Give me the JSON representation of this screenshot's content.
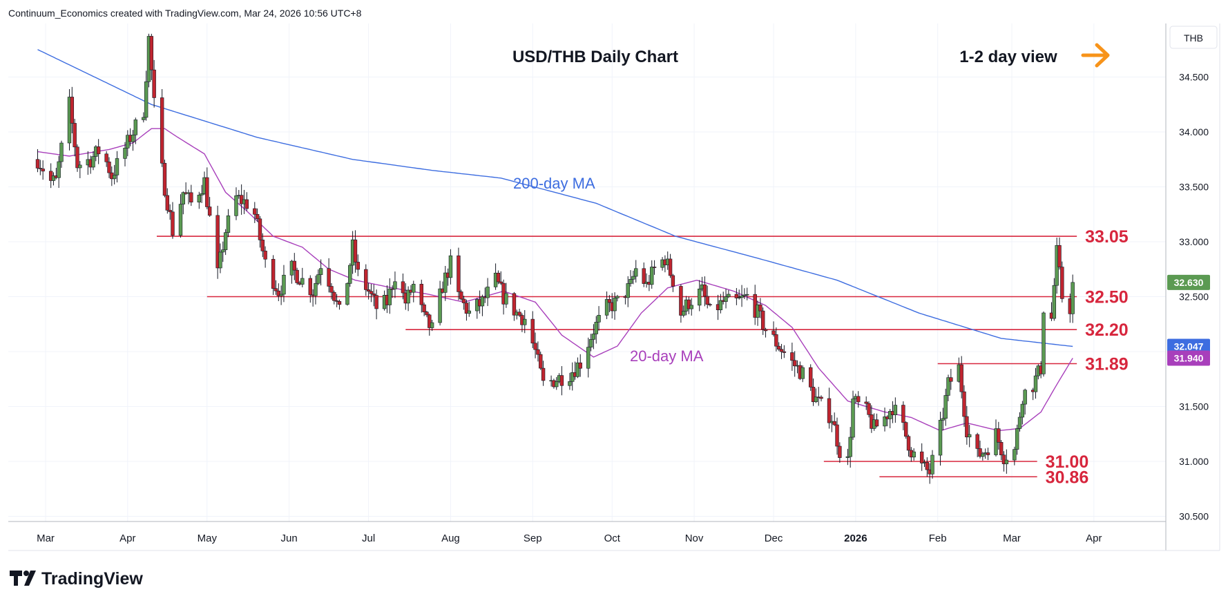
{
  "header": {
    "attribution": "Continuum_Economics created with TradingView.com, Mar 24, 2026 10:56 UTC+8"
  },
  "branding": {
    "logo_text": "TradingView"
  },
  "chart_data": {
    "type": "candlestick",
    "title": "USD/THB Daily Chart",
    "view": {
      "label": "1-2 day view",
      "direction": "right-arrow",
      "arrow_color": "#f7931a"
    },
    "currency_label": "THB",
    "y_axis": {
      "range": [
        30.4,
        35.0
      ],
      "ticks": [
        "30.500",
        "31.000",
        "31.500",
        "32.000",
        "32.500",
        "33.000",
        "33.500",
        "34.000",
        "34.500"
      ],
      "tick_values": [
        30.5,
        31.0,
        31.5,
        32.0,
        32.5,
        33.0,
        33.5,
        34.0,
        34.5
      ]
    },
    "x_axis": {
      "range": [
        "2025-02-26",
        "2026-04-30"
      ],
      "ticks": [
        {
          "label": "Mar",
          "date": "2025-03-01"
        },
        {
          "label": "Apr",
          "date": "2025-04-01"
        },
        {
          "label": "May",
          "date": "2025-05-01"
        },
        {
          "label": "Jun",
          "date": "2025-06-01"
        },
        {
          "label": "Jul",
          "date": "2025-07-01"
        },
        {
          "label": "Aug",
          "date": "2025-08-01"
        },
        {
          "label": "Sep",
          "date": "2025-09-01"
        },
        {
          "label": "Oct",
          "date": "2025-10-01"
        },
        {
          "label": "Nov",
          "date": "2025-11-01"
        },
        {
          "label": "Dec",
          "date": "2025-12-01"
        },
        {
          "label": "2026",
          "date": "2026-01-01",
          "bold": true
        },
        {
          "label": "Feb",
          "date": "2026-02-01"
        },
        {
          "label": "Mar",
          "date": "2026-03-01"
        },
        {
          "label": "Apr",
          "date": "2026-04-01"
        }
      ]
    },
    "grid": true,
    "colors": {
      "up": "#5b9a52",
      "down": "#c0252f",
      "wick": "#131722",
      "level_line": "#d7263d",
      "level_label": "#d7263d",
      "ma200": "#3d6de0",
      "ma20": "#a83fbb"
    },
    "price_path": [
      [
        "2025-02-26",
        33.75
      ],
      [
        "2025-03-03",
        33.55
      ],
      [
        "2025-03-05",
        33.55
      ],
      [
        "2025-03-08",
        34.0
      ],
      [
        "2025-03-10",
        34.25
      ],
      [
        "2025-03-13",
        33.7
      ],
      [
        "2025-03-18",
        33.75
      ],
      [
        "2025-03-22",
        33.85
      ],
      [
        "2025-03-26",
        33.6
      ],
      [
        "2025-04-01",
        33.9
      ],
      [
        "2025-04-07",
        34.2
      ],
      [
        "2025-04-09",
        34.85
      ],
      [
        "2025-04-12",
        33.95
      ],
      [
        "2025-04-15",
        33.5
      ],
      [
        "2025-04-18",
        33.1
      ],
      [
        "2025-04-22",
        33.45
      ],
      [
        "2025-04-25",
        33.35
      ],
      [
        "2025-04-30",
        33.55
      ],
      [
        "2025-05-05",
        32.7
      ],
      [
        "2025-05-08",
        33.1
      ],
      [
        "2025-05-12",
        33.4
      ],
      [
        "2025-05-16",
        33.35
      ],
      [
        "2025-05-19",
        33.25
      ],
      [
        "2025-05-23",
        32.8
      ],
      [
        "2025-05-28",
        32.55
      ],
      [
        "2025-06-02",
        32.75
      ],
      [
        "2025-06-06",
        32.65
      ],
      [
        "2025-06-10",
        32.55
      ],
      [
        "2025-06-13",
        32.8
      ],
      [
        "2025-06-17",
        32.6
      ],
      [
        "2025-06-20",
        32.35
      ],
      [
        "2025-06-23",
        32.65
      ],
      [
        "2025-06-25",
        32.95
      ],
      [
        "2025-06-27",
        32.7
      ],
      [
        "2025-07-01",
        32.55
      ],
      [
        "2025-07-04",
        32.4
      ],
      [
        "2025-07-08",
        32.45
      ],
      [
        "2025-07-11",
        32.7
      ],
      [
        "2025-07-15",
        32.45
      ],
      [
        "2025-07-18",
        32.6
      ],
      [
        "2025-07-22",
        32.3
      ],
      [
        "2025-07-25",
        32.2
      ],
      [
        "2025-07-29",
        32.6
      ],
      [
        "2025-08-01",
        32.8
      ],
      [
        "2025-08-04",
        32.5
      ],
      [
        "2025-08-08",
        32.35
      ],
      [
        "2025-08-13",
        32.45
      ],
      [
        "2025-08-18",
        32.65
      ],
      [
        "2025-08-21",
        32.5
      ],
      [
        "2025-08-26",
        32.35
      ],
      [
        "2025-08-29",
        32.3
      ],
      [
        "2025-09-02",
        32.0
      ],
      [
        "2025-09-05",
        31.7
      ],
      [
        "2025-09-10",
        31.75
      ],
      [
        "2025-09-15",
        31.8
      ],
      [
        "2025-09-19",
        31.9
      ],
      [
        "2025-09-24",
        32.2
      ],
      [
        "2025-09-29",
        32.4
      ],
      [
        "2025-10-03",
        32.45
      ],
      [
        "2025-10-08",
        32.6
      ],
      [
        "2025-10-10",
        32.75
      ],
      [
        "2025-10-14",
        32.6
      ],
      [
        "2025-10-17",
        32.75
      ],
      [
        "2025-10-21",
        32.85
      ],
      [
        "2025-10-24",
        32.65
      ],
      [
        "2025-10-27",
        32.35
      ],
      [
        "2025-10-30",
        32.45
      ],
      [
        "2025-11-04",
        32.55
      ],
      [
        "2025-11-07",
        32.35
      ],
      [
        "2025-11-12",
        32.45
      ],
      [
        "2025-11-17",
        32.45
      ],
      [
        "2025-11-21",
        32.5
      ],
      [
        "2025-11-25",
        32.35
      ],
      [
        "2025-11-28",
        32.2
      ],
      [
        "2025-12-03",
        32.05
      ],
      [
        "2025-12-08",
        31.9
      ],
      [
        "2025-12-12",
        31.8
      ],
      [
        "2025-12-16",
        31.6
      ],
      [
        "2025-12-19",
        31.5
      ],
      [
        "2025-12-23",
        31.4
      ],
      [
        "2025-12-26",
        31.1
      ],
      [
        "2025-12-29",
        31.0
      ],
      [
        "2025-12-31",
        31.55
      ],
      [
        "2026-01-05",
        31.45
      ],
      [
        "2026-01-08",
        31.3
      ],
      [
        "2026-01-12",
        31.4
      ],
      [
        "2026-01-15",
        31.5
      ],
      [
        "2026-01-19",
        31.3
      ],
      [
        "2026-01-22",
        31.1
      ],
      [
        "2026-01-26",
        30.95
      ],
      [
        "2026-01-29",
        30.9
      ],
      [
        "2026-02-02",
        31.3
      ],
      [
        "2026-02-05",
        31.7
      ],
      [
        "2026-02-09",
        31.85
      ],
      [
        "2026-02-12",
        31.3
      ],
      [
        "2026-02-16",
        31.05
      ],
      [
        "2026-02-19",
        31.1
      ],
      [
        "2026-02-23",
        31.25
      ],
      [
        "2026-02-26",
        31.05
      ],
      [
        "2026-03-02",
        31.1
      ],
      [
        "2026-03-05",
        31.6
      ],
      [
        "2026-03-09",
        31.7
      ],
      [
        "2026-03-12",
        31.85
      ],
      [
        "2026-03-13",
        32.4
      ],
      [
        "2026-03-16",
        32.3
      ],
      [
        "2026-03-18",
        32.9
      ],
      [
        "2026-03-20",
        32.5
      ],
      [
        "2026-03-23",
        32.4
      ],
      [
        "2026-03-24",
        32.63
      ]
    ],
    "moving_averages": [
      {
        "name": "200-day MA",
        "color": "#3d6de0",
        "points": [
          [
            "2025-02-26",
            34.75
          ],
          [
            "2025-04-10",
            34.25
          ],
          [
            "2025-05-20",
            33.95
          ],
          [
            "2025-06-25",
            33.75
          ],
          [
            "2025-07-25",
            33.65
          ],
          [
            "2025-08-20",
            33.58
          ],
          [
            "2025-09-25",
            33.35
          ],
          [
            "2025-10-25",
            33.05
          ],
          [
            "2025-11-25",
            32.85
          ],
          [
            "2025-12-25",
            32.65
          ],
          [
            "2026-01-25",
            32.35
          ],
          [
            "2026-02-25",
            32.12
          ],
          [
            "2026-03-24",
            32.047
          ]
        ]
      },
      {
        "name": "20-day MA",
        "color": "#a83fbb",
        "points": [
          [
            "2025-02-26",
            33.82
          ],
          [
            "2025-03-10",
            33.78
          ],
          [
            "2025-03-25",
            33.84
          ],
          [
            "2025-04-03",
            33.9
          ],
          [
            "2025-04-10",
            34.03
          ],
          [
            "2025-04-15",
            34.03
          ],
          [
            "2025-04-20",
            33.95
          ],
          [
            "2025-04-30",
            33.8
          ],
          [
            "2025-05-08",
            33.45
          ],
          [
            "2025-05-16",
            33.28
          ],
          [
            "2025-05-26",
            33.05
          ],
          [
            "2025-06-06",
            32.95
          ],
          [
            "2025-06-16",
            32.75
          ],
          [
            "2025-06-26",
            32.65
          ],
          [
            "2025-07-10",
            32.58
          ],
          [
            "2025-07-24",
            32.52
          ],
          [
            "2025-08-06",
            32.45
          ],
          [
            "2025-08-21",
            32.55
          ],
          [
            "2025-09-02",
            32.45
          ],
          [
            "2025-09-12",
            32.15
          ],
          [
            "2025-09-24",
            31.95
          ],
          [
            "2025-10-03",
            32.05
          ],
          [
            "2025-10-12",
            32.35
          ],
          [
            "2025-10-22",
            32.58
          ],
          [
            "2025-11-02",
            32.65
          ],
          [
            "2025-11-16",
            32.55
          ],
          [
            "2025-11-28",
            32.42
          ],
          [
            "2025-12-08",
            32.22
          ],
          [
            "2025-12-18",
            31.85
          ],
          [
            "2025-12-29",
            31.55
          ],
          [
            "2026-01-12",
            31.45
          ],
          [
            "2026-01-22",
            31.4
          ],
          [
            "2026-02-02",
            31.28
          ],
          [
            "2026-02-12",
            31.35
          ],
          [
            "2026-02-24",
            31.28
          ],
          [
            "2026-03-04",
            31.3
          ],
          [
            "2026-03-12",
            31.45
          ],
          [
            "2026-03-18",
            31.7
          ],
          [
            "2026-03-24",
            31.94
          ]
        ]
      }
    ],
    "levels": [
      {
        "value": 33.05,
        "label": "33.05",
        "from": "2025-04-12",
        "to": "2026-03-24"
      },
      {
        "value": 32.5,
        "label": "32.50",
        "from": "2025-05-01",
        "to": "2026-03-24"
      },
      {
        "value": 32.2,
        "label": "32.20",
        "from": "2025-07-15",
        "to": "2026-03-24"
      },
      {
        "value": 31.89,
        "label": "31.89",
        "from": "2026-02-01",
        "to": "2026-03-24"
      },
      {
        "value": 31.0,
        "label": "31.00",
        "from": "2025-12-20",
        "to": "2026-03-09"
      },
      {
        "value": 30.86,
        "label": "30.86",
        "from": "2026-01-10",
        "to": "2026-03-09"
      }
    ],
    "price_badges": [
      {
        "label": "32.630",
        "value": 32.63,
        "color": "#5b9a52"
      },
      {
        "label": "32.047",
        "value": 32.047,
        "color": "#3d6de0"
      },
      {
        "label": "31.940",
        "value": 31.94,
        "color": "#a83fbb"
      }
    ]
  }
}
